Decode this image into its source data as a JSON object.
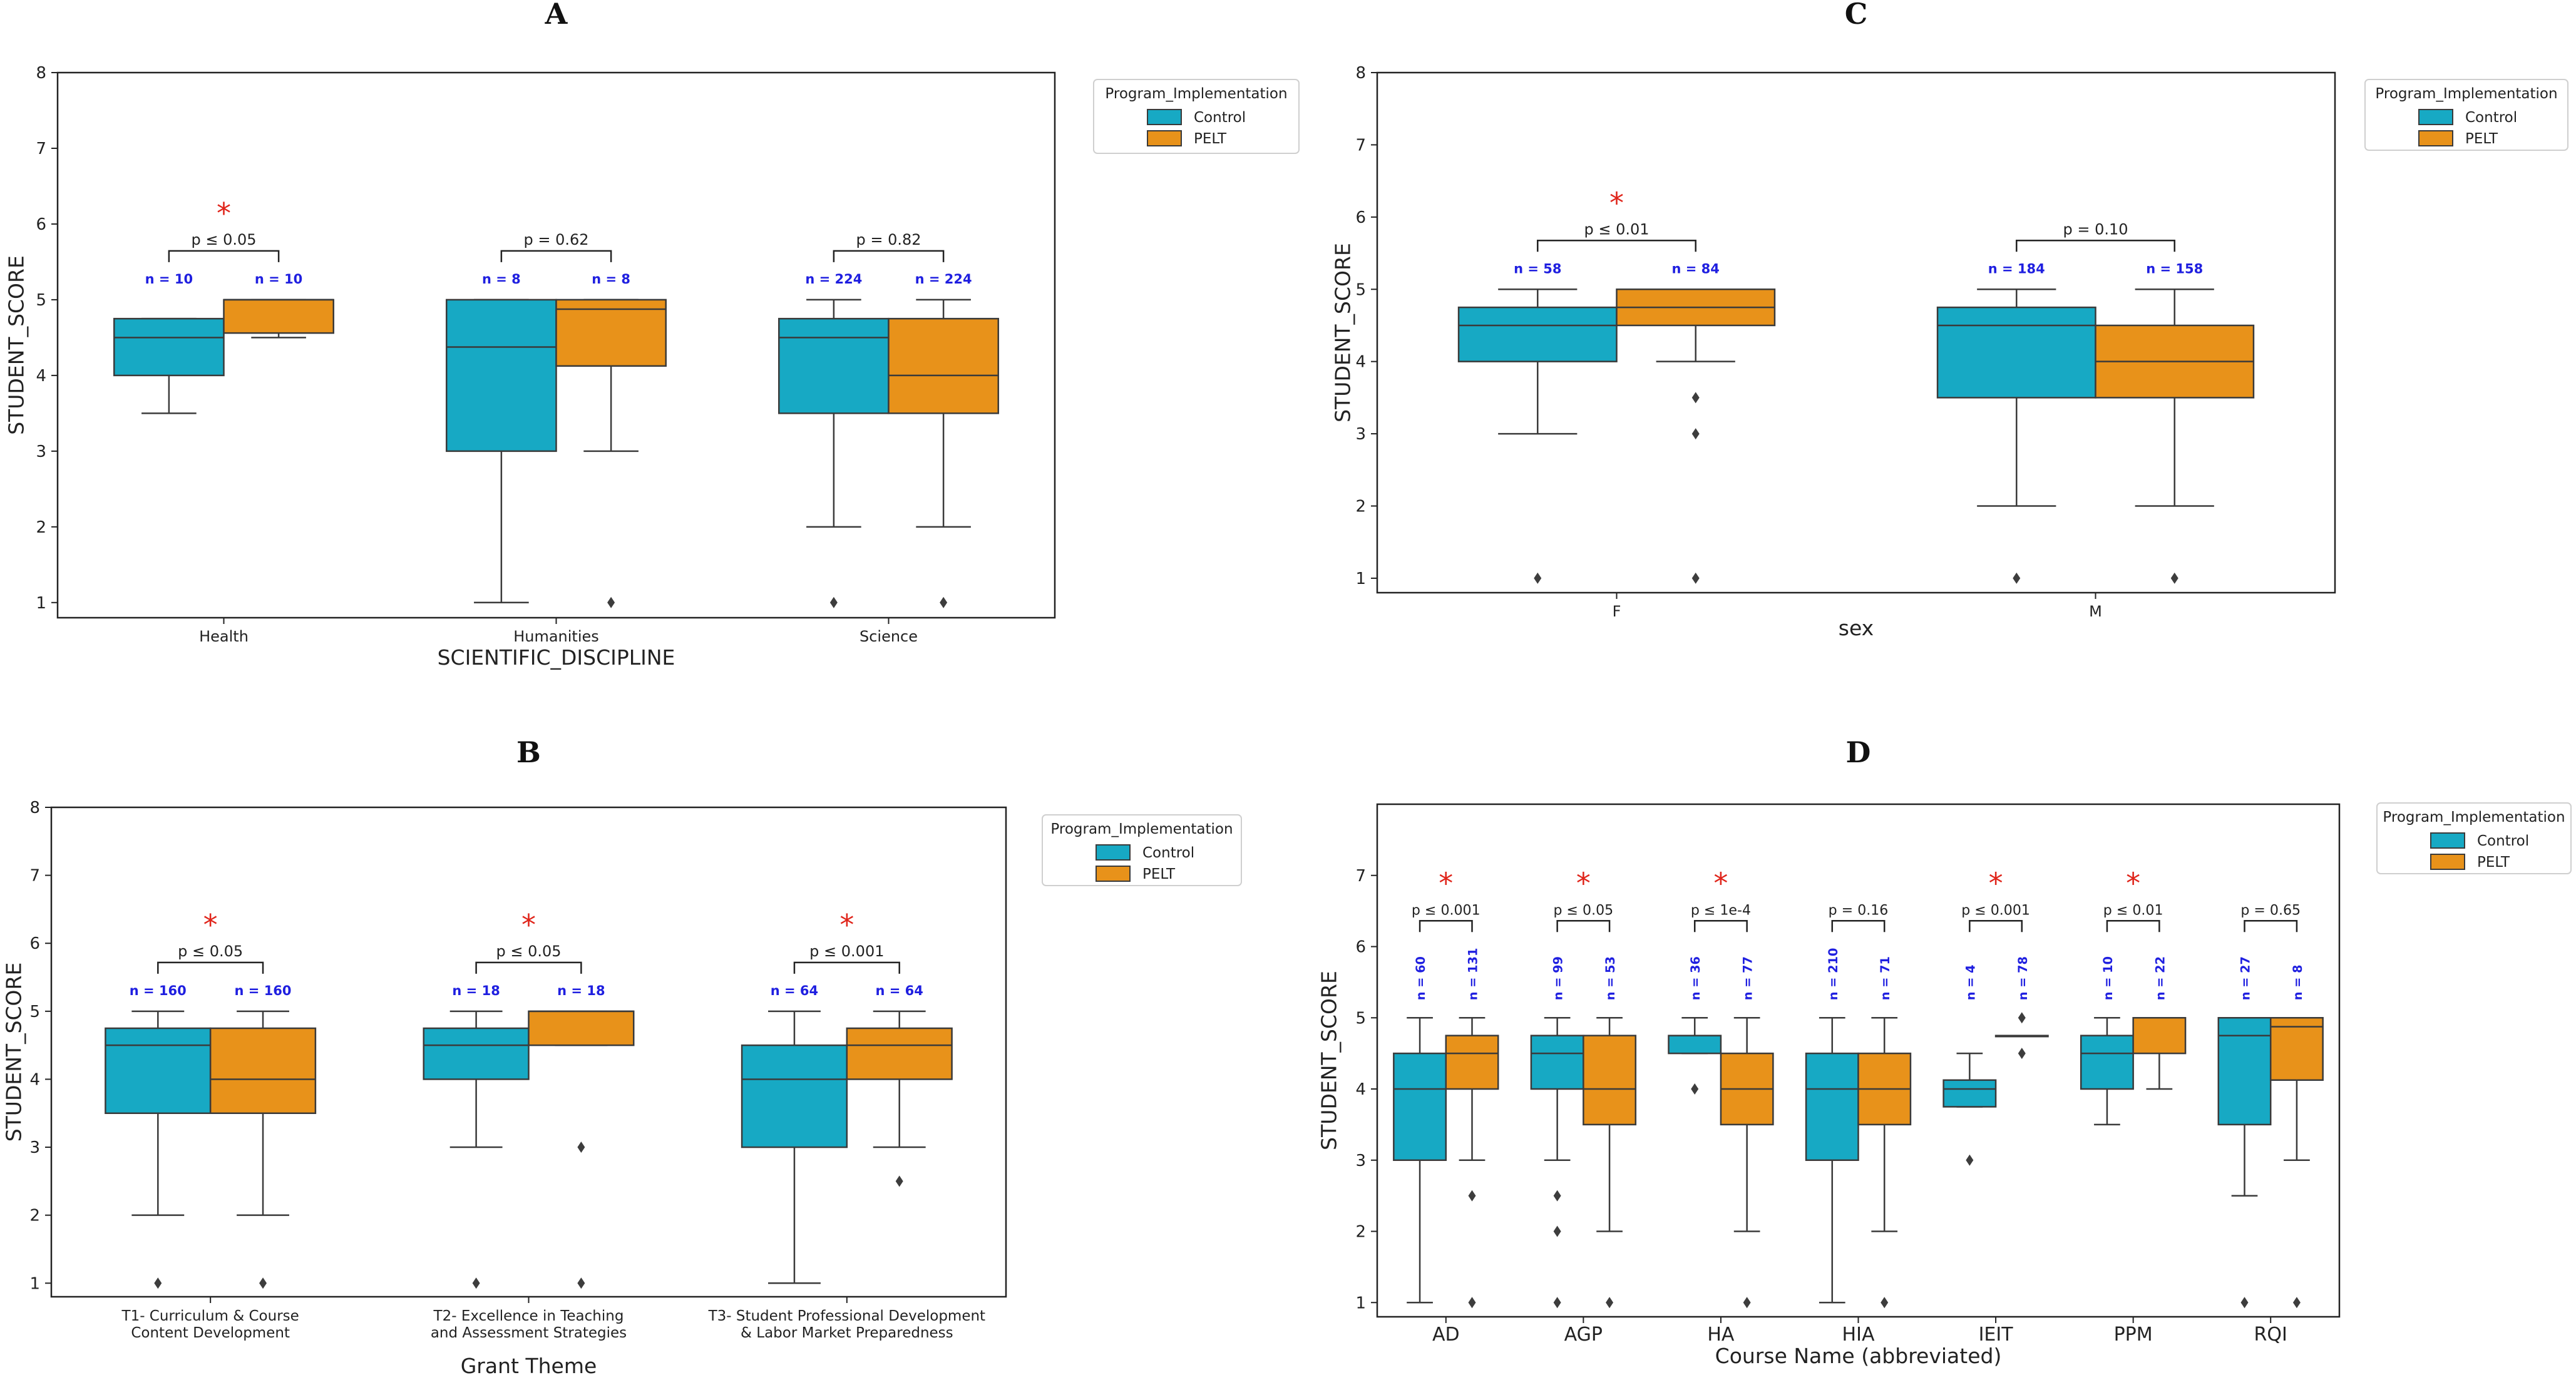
{
  "colors": {
    "control": "#17a9c4",
    "pelt": "#e8921a",
    "n_label": "#1f1fe0",
    "significance": "#e0251b",
    "line": "#3a3a3a"
  },
  "legend": {
    "title": "Program_Implementation",
    "labels": [
      "Control",
      "PELT"
    ]
  },
  "chart_data": [
    {
      "type": "box",
      "panel": "A",
      "title": "A",
      "xlabel": "SCIENTIFIC_DISCIPLINE",
      "ylabel": "STUDENT_SCORE",
      "ylim": [
        0.8,
        8
      ],
      "yticks": [
        "1",
        "2",
        "3",
        "4",
        "5",
        "6",
        "7",
        "8"
      ],
      "categories": [
        "Health",
        "Humanities",
        "Science"
      ],
      "series": [
        {
          "name": "Control",
          "boxes": [
            {
              "q1": 4,
              "median": 4.5,
              "q3": 4.75,
              "whisker_low": 3.5,
              "whisker_high": 4.75,
              "outliers": []
            },
            {
              "q1": 3,
              "median": 4.375,
              "q3": 5,
              "whisker_low": 1,
              "whisker_high": 5,
              "outliers": []
            },
            {
              "q1": 3.5,
              "median": 4.5,
              "q3": 4.75,
              "whisker_low": 2,
              "whisker_high": 5,
              "outliers": [
                1
              ]
            }
          ]
        },
        {
          "name": "PELT",
          "boxes": [
            {
              "q1": 4.56,
              "median": 5,
              "q3": 5,
              "whisker_low": 4.5,
              "whisker_high": 5,
              "outliers": []
            },
            {
              "q1": 4.125,
              "median": 4.875,
              "q3": 5,
              "whisker_low": 3,
              "whisker_high": 5,
              "outliers": [
                1
              ]
            },
            {
              "q1": 3.5,
              "median": 4,
              "q3": 4.75,
              "whisker_low": 2,
              "whisker_high": 5,
              "outliers": [
                1
              ]
            }
          ]
        }
      ],
      "n_labels": [
        [
          "n = 10",
          "n = 10"
        ],
        [
          "n = 8",
          "n = 8"
        ],
        [
          "n = 224",
          "n = 224"
        ]
      ],
      "pvalues": [
        "p ≤ 0.05",
        "p = 0.62",
        "p = 0.82"
      ],
      "significant": [
        true,
        false,
        false
      ],
      "significance_marker": "*",
      "rotate_n": false,
      "legend_position": "outside-right-top"
    },
    {
      "type": "box",
      "panel": "C",
      "title": "C",
      "xlabel": "sex",
      "ylabel": "STUDENT_SCORE",
      "ylim": [
        0.8,
        8
      ],
      "yticks": [
        "1",
        "2",
        "3",
        "4",
        "5",
        "6",
        "7",
        "8"
      ],
      "categories": [
        "F",
        "M"
      ],
      "series": [
        {
          "name": "Control",
          "boxes": [
            {
              "q1": 4,
              "median": 4.5,
              "q3": 4.75,
              "whisker_low": 3,
              "whisker_high": 5,
              "outliers": [
                1
              ]
            },
            {
              "q1": 3.5,
              "median": 4.5,
              "q3": 4.75,
              "whisker_low": 2,
              "whisker_high": 5,
              "outliers": [
                1
              ]
            }
          ]
        },
        {
          "name": "PELT",
          "boxes": [
            {
              "q1": 4.5,
              "median": 4.75,
              "q3": 5,
              "whisker_low": 4,
              "whisker_high": 5,
              "outliers": [
                3.5,
                3,
                1
              ]
            },
            {
              "q1": 3.5,
              "median": 4,
              "q3": 4.5,
              "whisker_low": 2,
              "whisker_high": 5,
              "outliers": [
                1
              ]
            }
          ]
        }
      ],
      "n_labels": [
        [
          "n = 58",
          "n = 84"
        ],
        [
          "n = 184",
          "n = 158"
        ]
      ],
      "pvalues": [
        "p ≤ 0.01",
        "p = 0.10"
      ],
      "significant": [
        true,
        false
      ],
      "significance_marker": "*",
      "rotate_n": false,
      "legend_position": "outside-right-top"
    },
    {
      "type": "box",
      "panel": "B",
      "title": "B",
      "xlabel": "Grant Theme",
      "ylabel": "STUDENT_SCORE",
      "ylim": [
        0.8,
        8
      ],
      "yticks": [
        "1",
        "2",
        "3",
        "4",
        "5",
        "6",
        "7",
        "8"
      ],
      "categories": [
        [
          "T1- Curriculum & Course",
          "Content Development"
        ],
        [
          "T2- Excellence in Teaching",
          "and Assessment Strategies"
        ],
        [
          "T3- Student Professional Development",
          "& Labor Market Preparedness"
        ]
      ],
      "series": [
        {
          "name": "Control",
          "boxes": [
            {
              "q1": 3.5,
              "median": 4.5,
              "q3": 4.75,
              "whisker_low": 2,
              "whisker_high": 5,
              "outliers": [
                1
              ]
            },
            {
              "q1": 4,
              "median": 4.5,
              "q3": 4.75,
              "whisker_low": 3,
              "whisker_high": 5,
              "outliers": [
                1
              ]
            },
            {
              "q1": 3,
              "median": 4,
              "q3": 4.5,
              "whisker_low": 1,
              "whisker_high": 5,
              "outliers": []
            }
          ]
        },
        {
          "name": "PELT",
          "boxes": [
            {
              "q1": 3.5,
              "median": 4,
              "q3": 4.75,
              "whisker_low": 2,
              "whisker_high": 5,
              "outliers": [
                1
              ]
            },
            {
              "q1": 4.5,
              "median": 5,
              "q3": 5,
              "whisker_low": 4.5,
              "whisker_high": 5,
              "outliers": [
                3,
                1
              ]
            },
            {
              "q1": 4,
              "median": 4.5,
              "q3": 4.75,
              "whisker_low": 3,
              "whisker_high": 5,
              "outliers": [
                2.5
              ]
            }
          ]
        }
      ],
      "n_labels": [
        [
          "n = 160",
          "n = 160"
        ],
        [
          "n = 18",
          "n = 18"
        ],
        [
          "n = 64",
          "n = 64"
        ]
      ],
      "pvalues": [
        "p ≤ 0.05",
        "p ≤ 0.05",
        "p ≤ 0.001"
      ],
      "significant": [
        true,
        true,
        true
      ],
      "significance_marker": "*",
      "rotate_n": false,
      "legend_position": "outside-right-top"
    },
    {
      "type": "box",
      "panel": "D",
      "title": "D",
      "xlabel": "Course Name (abbreviated)",
      "ylabel": "STUDENT_SCORE",
      "ylim": [
        0.8,
        8
      ],
      "yticks": [
        "1",
        "2",
        "3",
        "4",
        "5",
        "6",
        "7"
      ],
      "categories": [
        "AD",
        "AGP",
        "HA",
        "HIA",
        "IEIT",
        "PPM",
        "RQI"
      ],
      "series": [
        {
          "name": "Control",
          "boxes": [
            {
              "q1": 3,
              "median": 4,
              "q3": 4.5,
              "whisker_low": 1,
              "whisker_high": 5,
              "outliers": []
            },
            {
              "q1": 4,
              "median": 4.5,
              "q3": 4.75,
              "whisker_low": 3,
              "whisker_high": 5,
              "outliers": [
                2.5,
                2,
                1
              ]
            },
            {
              "q1": 4.5,
              "median": 4.75,
              "q3": 4.75,
              "whisker_low": 4.5,
              "whisker_high": 5,
              "outliers": [
                4
              ]
            },
            {
              "q1": 3,
              "median": 4,
              "q3": 4.5,
              "whisker_low": 1,
              "whisker_high": 5,
              "outliers": []
            },
            {
              "q1": 3.75,
              "median": 4,
              "q3": 4.125,
              "whisker_low": 3.75,
              "whisker_high": 4.5,
              "outliers": [
                3
              ]
            },
            {
              "q1": 4,
              "median": 4.5,
              "q3": 4.75,
              "whisker_low": 3.5,
              "whisker_high": 5,
              "outliers": []
            },
            {
              "q1": 3.5,
              "median": 4.75,
              "q3": 5,
              "whisker_low": 2.5,
              "whisker_high": 5,
              "outliers": [
                1
              ]
            }
          ]
        },
        {
          "name": "PELT",
          "boxes": [
            {
              "q1": 4,
              "median": 4.5,
              "q3": 4.75,
              "whisker_low": 3,
              "whisker_high": 5,
              "outliers": [
                2.5,
                1
              ]
            },
            {
              "q1": 3.5,
              "median": 4,
              "q3": 4.75,
              "whisker_low": 2,
              "whisker_high": 5,
              "outliers": [
                1
              ]
            },
            {
              "q1": 3.5,
              "median": 4,
              "q3": 4.5,
              "whisker_low": 2,
              "whisker_high": 5,
              "outliers": [
                1
              ]
            },
            {
              "q1": 3.5,
              "median": 4,
              "q3": 4.5,
              "whisker_low": 2,
              "whisker_high": 5,
              "outliers": [
                1
              ]
            },
            {
              "q1": 4.75,
              "median": 4.75,
              "q3": 4.75,
              "whisker_low": 4.75,
              "whisker_high": 4.75,
              "outliers": [
                5,
                4.5
              ]
            },
            {
              "q1": 4.5,
              "median": 5,
              "q3": 5,
              "whisker_low": 4,
              "whisker_high": 5,
              "outliers": []
            },
            {
              "q1": 4.125,
              "median": 4.875,
              "q3": 5,
              "whisker_low": 3,
              "whisker_high": 5,
              "outliers": [
                1
              ]
            }
          ]
        }
      ],
      "n_labels": [
        [
          "n = 60",
          "n = 131"
        ],
        [
          "n = 99",
          "n = 53"
        ],
        [
          "n = 36",
          "n = 77"
        ],
        [
          "n = 210",
          "n = 71"
        ],
        [
          "n = 4",
          "n = 78"
        ],
        [
          "n = 10",
          "n = 22"
        ],
        [
          "n = 27",
          "n = 8"
        ]
      ],
      "pvalues": [
        "p ≤ 0.001",
        "p ≤ 0.05",
        "p ≤ 1e-4",
        "p = 0.16",
        "p ≤ 0.001",
        "p ≤ 0.01",
        "p = 0.65"
      ],
      "significant": [
        true,
        true,
        true,
        false,
        true,
        true,
        false
      ],
      "significance_marker": "*",
      "rotate_n": true,
      "legend_position": "outside-right-top"
    }
  ]
}
